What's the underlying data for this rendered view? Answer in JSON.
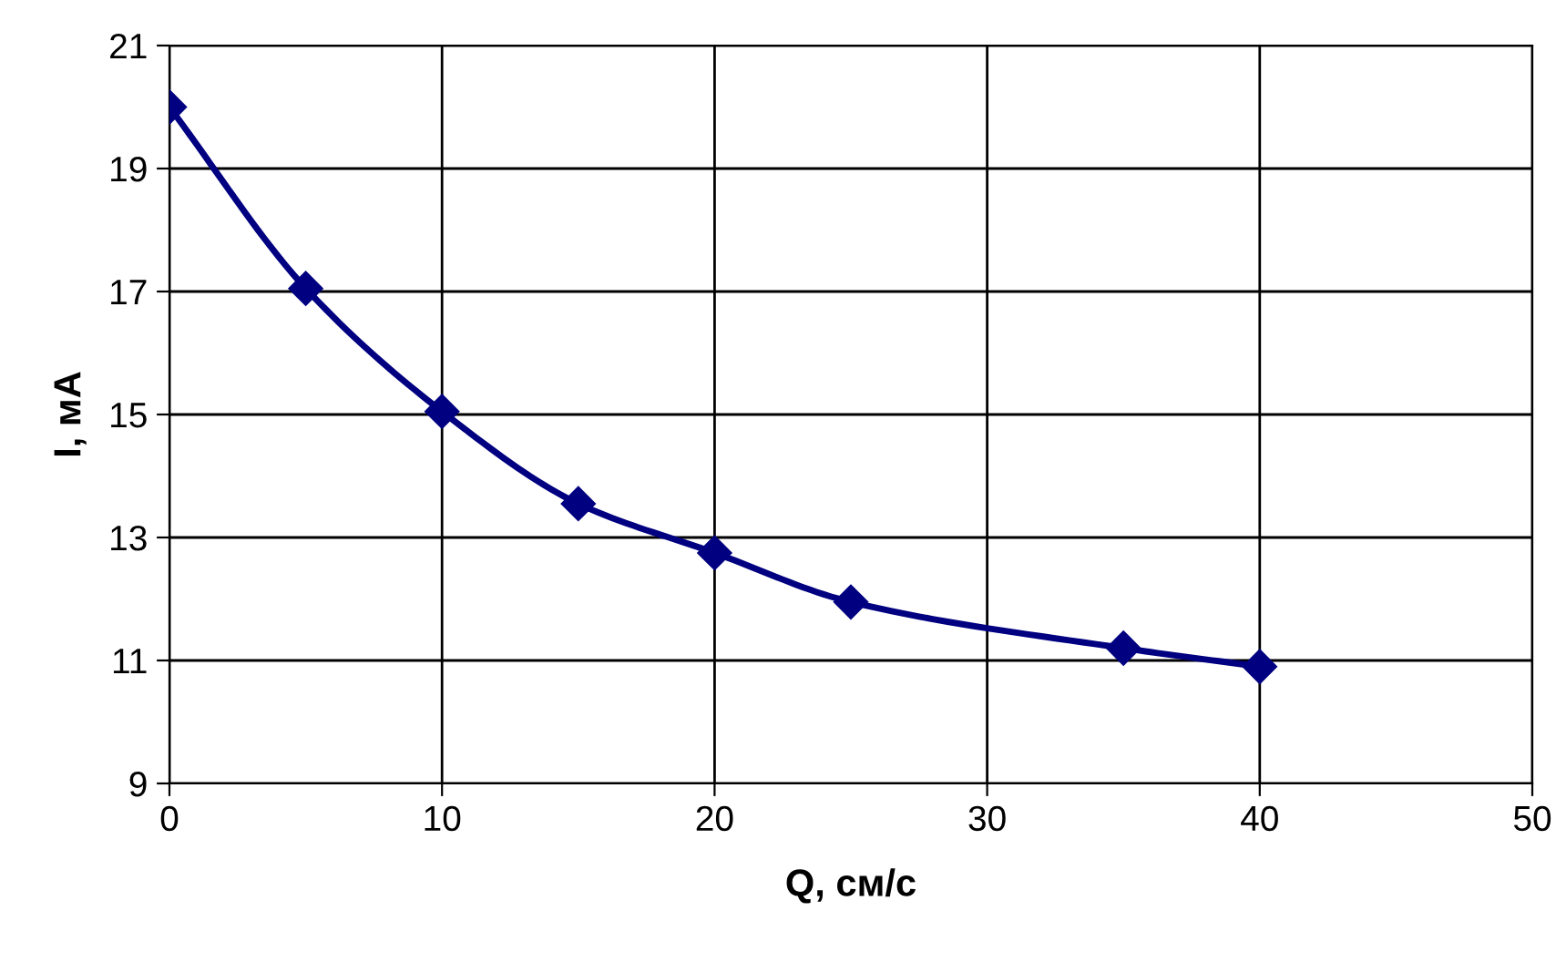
{
  "chart_data": {
    "type": "line",
    "xlabel": "Q, см/с",
    "ylabel": "I, мА",
    "x": [
      0,
      5,
      10,
      15,
      20,
      25,
      35,
      40
    ],
    "series": [
      {
        "color": "#000080",
        "values": [
          20,
          17.05,
          15.05,
          13.55,
          12.75,
          11.95,
          11.2,
          10.9
        ]
      }
    ],
    "xlim": [
      0,
      50
    ],
    "xticks": [
      0,
      10,
      20,
      30,
      40,
      50
    ],
    "ylim": [
      9,
      21
    ],
    "yticks": [
      9,
      11,
      13,
      15,
      17,
      19,
      21
    ],
    "grid": true,
    "marker": "diamond",
    "line_style": "solid"
  }
}
